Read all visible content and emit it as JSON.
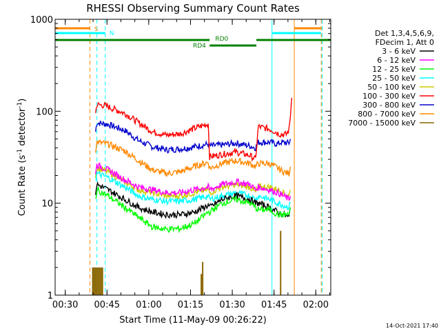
{
  "chart_data": {
    "type": "line",
    "title": "RHESSI Observing Summary Count Rates",
    "ylabel_main": "Count Rate (s",
    "ylabel_sup1": "-1",
    "ylabel_mid": " detector",
    "ylabel_sup2": "-1",
    "ylabel_end": ")",
    "xlabel": "Start Time (11-May-09 00:26:22)",
    "footer": "14-Oct-2021 17:40",
    "y_scale": "log",
    "ylim": [
      1,
      1000
    ],
    "xlim": [
      0,
      99
    ],
    "x_units": "minutes after 00:26:22",
    "y_ticks": [
      {
        "value": 1,
        "label": "1"
      },
      {
        "value": 10,
        "label": "10"
      },
      {
        "value": 100,
        "label": "100"
      },
      {
        "value": 1000,
        "label": "1000"
      }
    ],
    "x_ticks": [
      {
        "value": 3.63,
        "label": "00:30"
      },
      {
        "value": 18.63,
        "label": "00:45"
      },
      {
        "value": 33.63,
        "label": "01:00"
      },
      {
        "value": 48.63,
        "label": "01:15"
      },
      {
        "value": 63.63,
        "label": "01:30"
      },
      {
        "value": 78.63,
        "label": "01:45"
      },
      {
        "value": 93.63,
        "label": "02:00"
      }
    ],
    "legend": {
      "header": [
        "Det 1,3,4,5,6,9,",
        "FDecim 1, Att 0"
      ],
      "entries": [
        {
          "label": "3 - 6 keV",
          "color": "#000000"
        },
        {
          "label": "6 - 12 keV",
          "color": "#ff00ff"
        },
        {
          "label": "12 - 25 keV",
          "color": "#00ff00"
        },
        {
          "label": "25 - 50 keV",
          "color": "#00ffff"
        },
        {
          "label": "50 - 100 keV",
          "color": "#cccc00"
        },
        {
          "label": "100 - 300 keV",
          "color": "#ff0000"
        },
        {
          "label": "300 - 800 keV",
          "color": "#0000cc"
        },
        {
          "label": "800 - 7000 keV",
          "color": "#ff8800"
        },
        {
          "label": "7000 - 15000 keV",
          "color": "#886600"
        }
      ]
    },
    "flags": {
      "S": {
        "label": "S",
        "color": "#ff8800"
      },
      "N": {
        "label": "N",
        "color": "#00ffff"
      },
      "RD0": {
        "label": "RD0",
        "color": "#008000"
      },
      "RD4": {
        "label": "RD4",
        "color": "#008000"
      }
    },
    "series": [
      {
        "name": "300 - 800 keV",
        "color": "#0000cc",
        "points": [
          [
            14.5,
            60
          ],
          [
            15,
            75
          ],
          [
            19,
            72
          ],
          [
            25,
            62
          ],
          [
            30,
            48
          ],
          [
            35,
            41
          ],
          [
            40,
            38
          ],
          [
            45,
            39
          ],
          [
            50,
            41
          ],
          [
            55,
            44
          ],
          [
            55.5,
            42
          ],
          [
            60,
            43
          ],
          [
            65,
            45
          ],
          [
            70,
            42
          ],
          [
            72,
            40
          ],
          [
            73,
            46
          ],
          [
            77,
            46
          ],
          [
            80,
            44
          ],
          [
            81,
            46
          ],
          [
            84,
            45
          ],
          [
            84.5,
            50
          ]
        ]
      },
      {
        "name": "100 - 300 keV",
        "color": "#ff0000",
        "points": [
          [
            14.5,
            95
          ],
          [
            15,
            118
          ],
          [
            18,
            115
          ],
          [
            25,
            95
          ],
          [
            30,
            75
          ],
          [
            35,
            60
          ],
          [
            40,
            55
          ],
          [
            45,
            57
          ],
          [
            50,
            65
          ],
          [
            55,
            73
          ],
          [
            55.5,
            32
          ],
          [
            60,
            34
          ],
          [
            65,
            36
          ],
          [
            70,
            33
          ],
          [
            72,
            30
          ],
          [
            73,
            68
          ],
          [
            77,
            64
          ],
          [
            80,
            58
          ],
          [
            81,
            56
          ],
          [
            83,
            56
          ],
          [
            84,
            62
          ],
          [
            84.5,
            90
          ],
          [
            85,
            140
          ]
        ]
      },
      {
        "name": "800 - 7000 keV",
        "color": "#ff8800",
        "points": [
          [
            14.5,
            38
          ],
          [
            15,
            46
          ],
          [
            19,
            44
          ],
          [
            25,
            37
          ],
          [
            30,
            29
          ],
          [
            35,
            23
          ],
          [
            40,
            21
          ],
          [
            45,
            22
          ],
          [
            50,
            25
          ],
          [
            55,
            28
          ],
          [
            55.5,
            24
          ],
          [
            60,
            27
          ],
          [
            65,
            29
          ],
          [
            70,
            27
          ],
          [
            72,
            25
          ],
          [
            73,
            27
          ],
          [
            77,
            27
          ],
          [
            80,
            24
          ],
          [
            82,
            22
          ],
          [
            84,
            21
          ],
          [
            84.5,
            25
          ]
        ]
      },
      {
        "name": "50 - 100 keV",
        "color": "#cccc00",
        "points": [
          [
            14.5,
            20
          ],
          [
            15,
            24
          ],
          [
            19,
            22
          ],
          [
            25,
            17
          ],
          [
            30,
            14
          ],
          [
            35,
            13
          ],
          [
            40,
            12
          ],
          [
            45,
            12
          ],
          [
            50,
            13
          ],
          [
            55,
            14
          ],
          [
            55.5,
            13
          ],
          [
            60,
            15
          ],
          [
            65,
            16
          ],
          [
            70,
            15
          ],
          [
            72,
            13
          ],
          [
            73,
            15
          ],
          [
            77,
            15
          ],
          [
            80,
            14
          ],
          [
            82,
            13
          ],
          [
            84,
            12
          ],
          [
            84.5,
            14
          ]
        ]
      },
      {
        "name": "6 - 12 keV",
        "color": "#ff00ff",
        "points": [
          [
            14.5,
            22
          ],
          [
            15,
            26
          ],
          [
            19,
            23
          ],
          [
            25,
            18
          ],
          [
            30,
            15
          ],
          [
            35,
            14
          ],
          [
            40,
            13
          ],
          [
            45,
            13
          ],
          [
            50,
            14
          ],
          [
            55,
            15
          ],
          [
            55.5,
            14
          ],
          [
            60,
            16
          ],
          [
            65,
            17
          ],
          [
            70,
            16
          ],
          [
            72,
            14
          ],
          [
            73,
            15
          ],
          [
            77,
            14
          ],
          [
            80,
            13
          ],
          [
            82,
            12
          ],
          [
            84,
            11
          ],
          [
            84.5,
            12
          ]
        ]
      },
      {
        "name": "25 - 50 keV",
        "color": "#00ffff",
        "points": [
          [
            14.5,
            18
          ],
          [
            15,
            21
          ],
          [
            19,
            19
          ],
          [
            25,
            15
          ],
          [
            30,
            12
          ],
          [
            35,
            11
          ],
          [
            40,
            10.5
          ],
          [
            45,
            10.5
          ],
          [
            50,
            11
          ],
          [
            55,
            12
          ],
          [
            55.5,
            11
          ],
          [
            60,
            12
          ],
          [
            65,
            13
          ],
          [
            70,
            12
          ],
          [
            72,
            11
          ],
          [
            73,
            12
          ],
          [
            77,
            11
          ],
          [
            80,
            10
          ],
          [
            82,
            9.5
          ],
          [
            84,
            9
          ],
          [
            84.5,
            10
          ]
        ]
      },
      {
        "name": "3 - 6 keV",
        "color": "#000000",
        "points": [
          [
            14.5,
            13
          ],
          [
            15,
            16
          ],
          [
            19,
            14
          ],
          [
            25,
            11
          ],
          [
            30,
            9
          ],
          [
            35,
            8
          ],
          [
            40,
            7.5
          ],
          [
            45,
            7.5
          ],
          [
            50,
            8
          ],
          [
            55,
            9.5
          ],
          [
            55.5,
            9
          ],
          [
            60,
            11
          ],
          [
            65,
            12
          ],
          [
            70,
            11
          ],
          [
            72,
            10
          ],
          [
            73,
            10
          ],
          [
            77,
            9
          ],
          [
            80,
            8
          ],
          [
            82,
            7.5
          ],
          [
            84,
            7
          ],
          [
            84.5,
            9
          ]
        ]
      },
      {
        "name": "12 - 25 keV",
        "color": "#00ff00",
        "points": [
          [
            14.5,
            11
          ],
          [
            15,
            14
          ],
          [
            19,
            12
          ],
          [
            25,
            9
          ],
          [
            30,
            7
          ],
          [
            35,
            5.5
          ],
          [
            40,
            5.2
          ],
          [
            45,
            5.3
          ],
          [
            50,
            6
          ],
          [
            55,
            8
          ],
          [
            55.5,
            8
          ],
          [
            60,
            10
          ],
          [
            65,
            11
          ],
          [
            70,
            10
          ],
          [
            72,
            9
          ],
          [
            73,
            8.5
          ],
          [
            77,
            8.5
          ],
          [
            80,
            7.5
          ],
          [
            82,
            7.5
          ],
          [
            84,
            7.5
          ],
          [
            84.5,
            9
          ]
        ]
      }
    ]
  }
}
